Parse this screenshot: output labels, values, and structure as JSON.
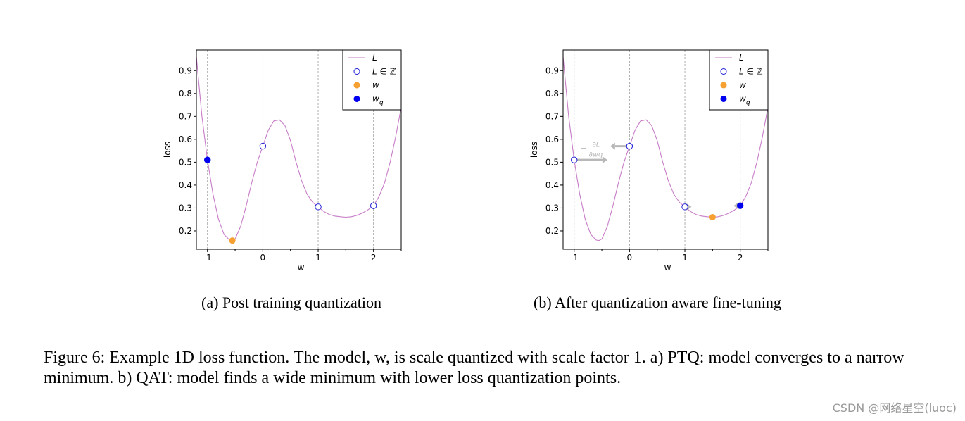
{
  "figure": {
    "caption": "Figure 6: Example 1D loss function. The model, w, is scale quantized with scale factor 1. a) PTQ: model converges to a narrow minimum. b) QAT: model finds a wide minimum with lower loss quantization points.",
    "watermark": "CSDN @网络星空(luoc)"
  },
  "colors": {
    "curve": "#c77dc7",
    "int_marker": "#1f1fd6",
    "w_marker": "#f5a031",
    "wq_marker": "#0000f0",
    "grid": "#9a9a9a",
    "gradient_arrow": "#b8b8b8"
  },
  "chart_data": [
    {
      "type": "line",
      "caption": "(a) Post training quantization",
      "xlabel": "w",
      "ylabel": "loss",
      "xlim": [
        -1.2,
        2.5
      ],
      "ylim": [
        0.12,
        0.99
      ],
      "xticks": [
        -1,
        0,
        1,
        2
      ],
      "xtick_labels": [
        "-1",
        "0",
        "1",
        "2"
      ],
      "yticks": [
        0.2,
        0.3,
        0.4,
        0.5,
        0.6,
        0.7,
        0.8,
        0.9
      ],
      "ytick_labels": [
        "0.2",
        "0.3",
        "0.4",
        "0.5",
        "0.6",
        "0.7",
        "0.8",
        "0.9"
      ],
      "vertical_gridlines": [
        -1,
        0,
        1,
        2
      ],
      "legend": {
        "location": "top-right",
        "entries": [
          "L",
          "L ∈ ℤ",
          "w",
          "wq"
        ]
      },
      "curve": {
        "name": "L",
        "x": [
          -1.2,
          -1.1,
          -1.0,
          -0.9,
          -0.8,
          -0.7,
          -0.6,
          -0.55,
          -0.5,
          -0.4,
          -0.3,
          -0.2,
          -0.1,
          0.0,
          0.1,
          0.2,
          0.3,
          0.4,
          0.5,
          0.6,
          0.7,
          0.8,
          0.9,
          1.0,
          1.1,
          1.2,
          1.3,
          1.4,
          1.5,
          1.6,
          1.7,
          1.8,
          1.9,
          2.0,
          2.1,
          2.2,
          2.3,
          2.4,
          2.5
        ],
        "y": [
          0.96,
          0.7,
          0.51,
          0.36,
          0.25,
          0.185,
          0.16,
          0.158,
          0.165,
          0.22,
          0.31,
          0.41,
          0.5,
          0.57,
          0.64,
          0.68,
          0.685,
          0.66,
          0.595,
          0.5,
          0.42,
          0.36,
          0.325,
          0.305,
          0.285,
          0.272,
          0.265,
          0.262,
          0.26,
          0.262,
          0.268,
          0.278,
          0.292,
          0.31,
          0.35,
          0.41,
          0.5,
          0.61,
          0.74
        ]
      },
      "integer_points": [
        {
          "x": -1,
          "y": 0.51
        },
        {
          "x": 0,
          "y": 0.57
        },
        {
          "x": 1,
          "y": 0.305
        },
        {
          "x": 2,
          "y": 0.31
        }
      ],
      "w": {
        "x": -0.55,
        "y": 0.158
      },
      "wq": {
        "x": -1,
        "y": 0.51
      }
    },
    {
      "type": "line",
      "caption": "(b) After quantization aware fine-tuning",
      "xlabel": "w",
      "ylabel": "loss",
      "xlim": [
        -1.2,
        2.5
      ],
      "ylim": [
        0.12,
        0.99
      ],
      "xticks": [
        -1,
        0,
        1,
        2
      ],
      "xtick_labels": [
        "-1",
        "0",
        "1",
        "2"
      ],
      "yticks": [
        0.2,
        0.3,
        0.4,
        0.5,
        0.6,
        0.7,
        0.8,
        0.9
      ],
      "ytick_labels": [
        "0.2",
        "0.3",
        "0.4",
        "0.5",
        "0.6",
        "0.7",
        "0.8",
        "0.9"
      ],
      "vertical_gridlines": [
        -1,
        0,
        1,
        2
      ],
      "legend": {
        "location": "top-right",
        "entries": [
          "L",
          "L ∈ ℤ",
          "w",
          "wq"
        ]
      },
      "curve": {
        "name": "L",
        "x": [
          -1.2,
          -1.1,
          -1.0,
          -0.9,
          -0.8,
          -0.7,
          -0.6,
          -0.55,
          -0.5,
          -0.4,
          -0.3,
          -0.2,
          -0.1,
          0.0,
          0.1,
          0.2,
          0.3,
          0.4,
          0.5,
          0.6,
          0.7,
          0.8,
          0.9,
          1.0,
          1.1,
          1.2,
          1.3,
          1.4,
          1.5,
          1.6,
          1.7,
          1.8,
          1.9,
          2.0,
          2.1,
          2.2,
          2.3,
          2.4,
          2.5
        ],
        "y": [
          0.96,
          0.7,
          0.51,
          0.36,
          0.25,
          0.185,
          0.16,
          0.158,
          0.165,
          0.22,
          0.31,
          0.41,
          0.5,
          0.57,
          0.64,
          0.68,
          0.685,
          0.66,
          0.595,
          0.5,
          0.42,
          0.36,
          0.325,
          0.305,
          0.285,
          0.272,
          0.265,
          0.262,
          0.26,
          0.262,
          0.268,
          0.278,
          0.292,
          0.31,
          0.35,
          0.41,
          0.5,
          0.61,
          0.74
        ]
      },
      "integer_points": [
        {
          "x": -1,
          "y": 0.51
        },
        {
          "x": 0,
          "y": 0.57
        },
        {
          "x": 1,
          "y": 0.305
        },
        {
          "x": 2,
          "y": 0.31
        }
      ],
      "w": {
        "x": 1.5,
        "y": 0.26
      },
      "wq": {
        "x": 2,
        "y": 0.31
      },
      "gradient_arrows": [
        {
          "x_from": -1,
          "x_to": -0.4,
          "y": 0.51
        },
        {
          "x_from": 0,
          "x_to": -0.35,
          "y": 0.57
        },
        {
          "x_from": 1,
          "x_to": 1.12,
          "y": 0.305
        },
        {
          "x_from": 2,
          "x_to": 1.88,
          "y": 0.31
        }
      ],
      "annotation": {
        "sign": "−",
        "numerator": "∂L",
        "denominator": "∂wq",
        "x": -0.9,
        "y": 0.555
      }
    }
  ]
}
